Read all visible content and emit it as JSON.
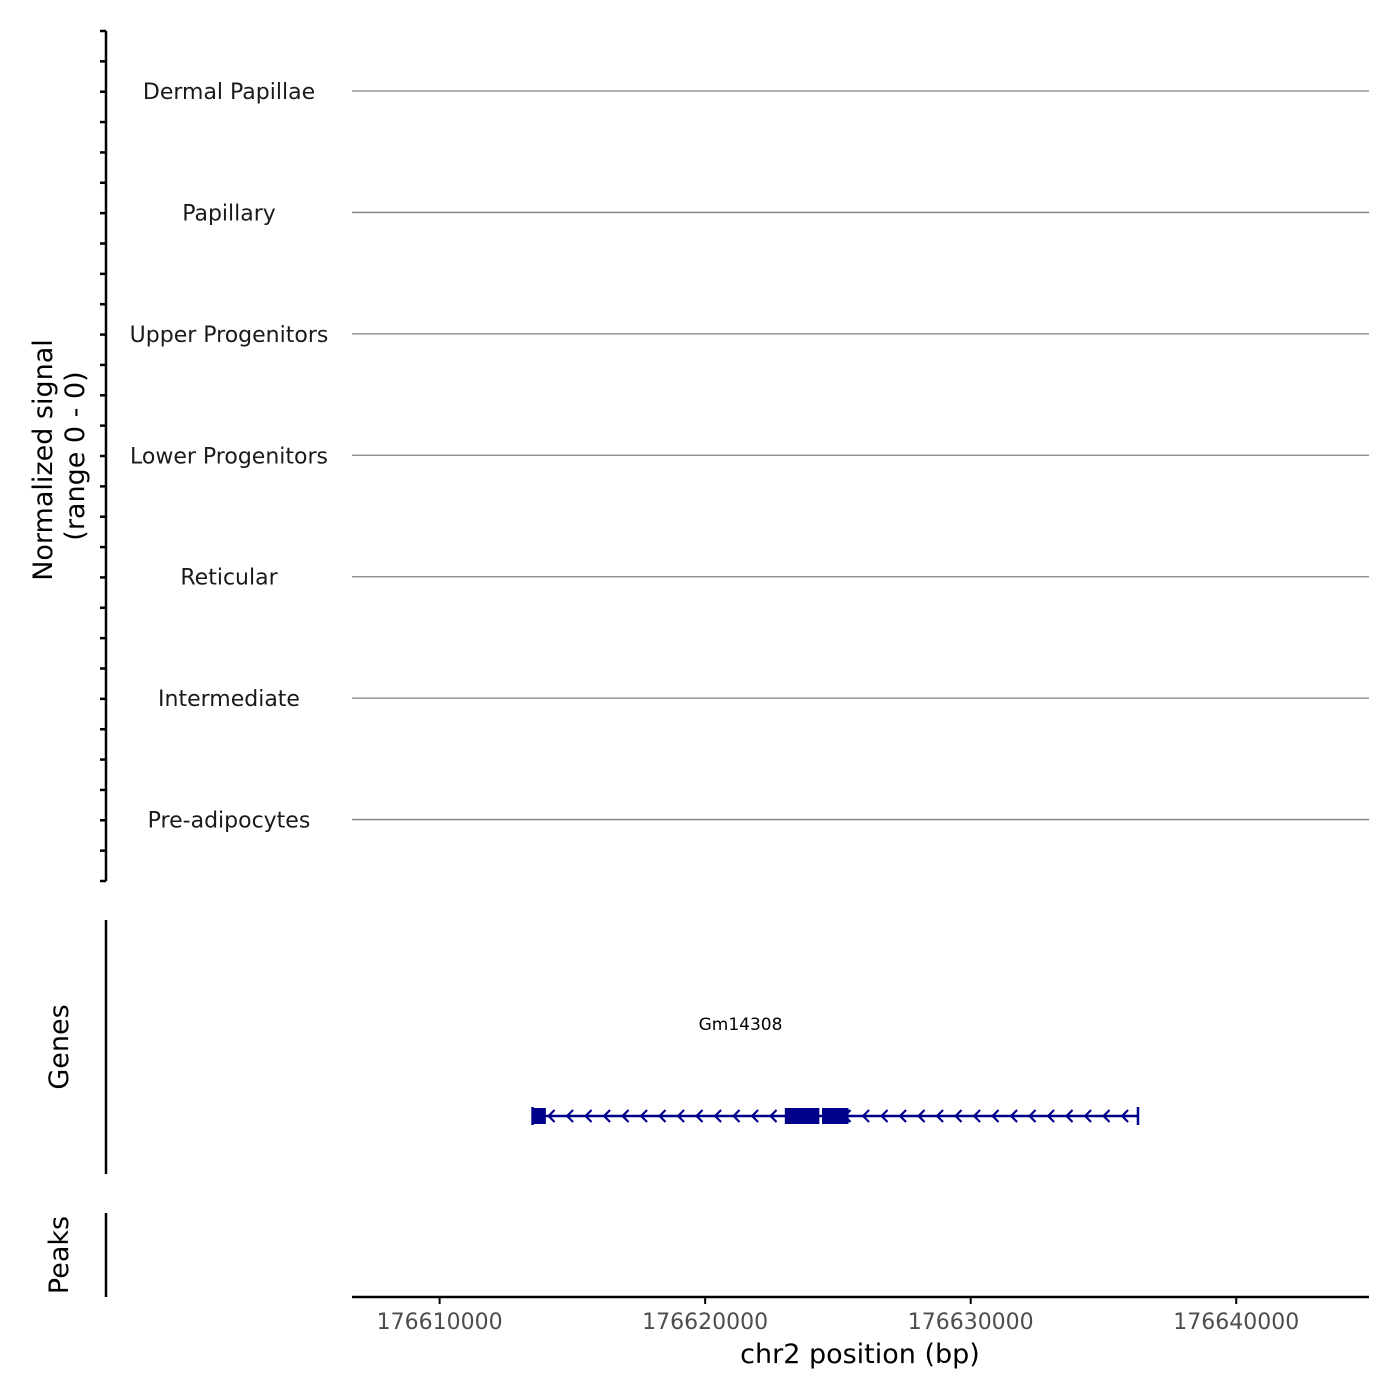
{
  "chart_data": {
    "type": "genome-coverage-track",
    "ylabel_line1": "Normalized signal",
    "ylabel_line2": "(range 0 - 0)",
    "tracks": [
      {
        "name": "Dermal Papillae",
        "values": [
          0
        ]
      },
      {
        "name": "Papillary",
        "values": [
          0
        ]
      },
      {
        "name": "Upper Progenitors",
        "values": [
          0
        ]
      },
      {
        "name": "Lower Progenitors",
        "values": [
          0
        ]
      },
      {
        "name": "Reticular",
        "values": [
          0
        ]
      },
      {
        "name": "Intermediate",
        "values": [
          0
        ]
      },
      {
        "name": "Pre-adipocytes",
        "values": [
          0
        ]
      }
    ],
    "genes_label": "Genes",
    "peaks_label": "Peaks",
    "genes": [
      {
        "name": "Gm14308",
        "strand": "-",
        "start": 176613500,
        "end": 176636300,
        "exons": [
          [
            176613500,
            176614000
          ],
          [
            176623000,
            176624300
          ],
          [
            176624400,
            176625400
          ]
        ],
        "color": "#00008b"
      }
    ],
    "xlabel": "chr2 position (bp)",
    "xlim": [
      176606700,
      176645000
    ],
    "xticks": [
      176610000,
      176620000,
      176630000,
      176640000
    ],
    "xtick_labels": [
      "176610000",
      "176620000",
      "176630000",
      "176640000"
    ]
  }
}
